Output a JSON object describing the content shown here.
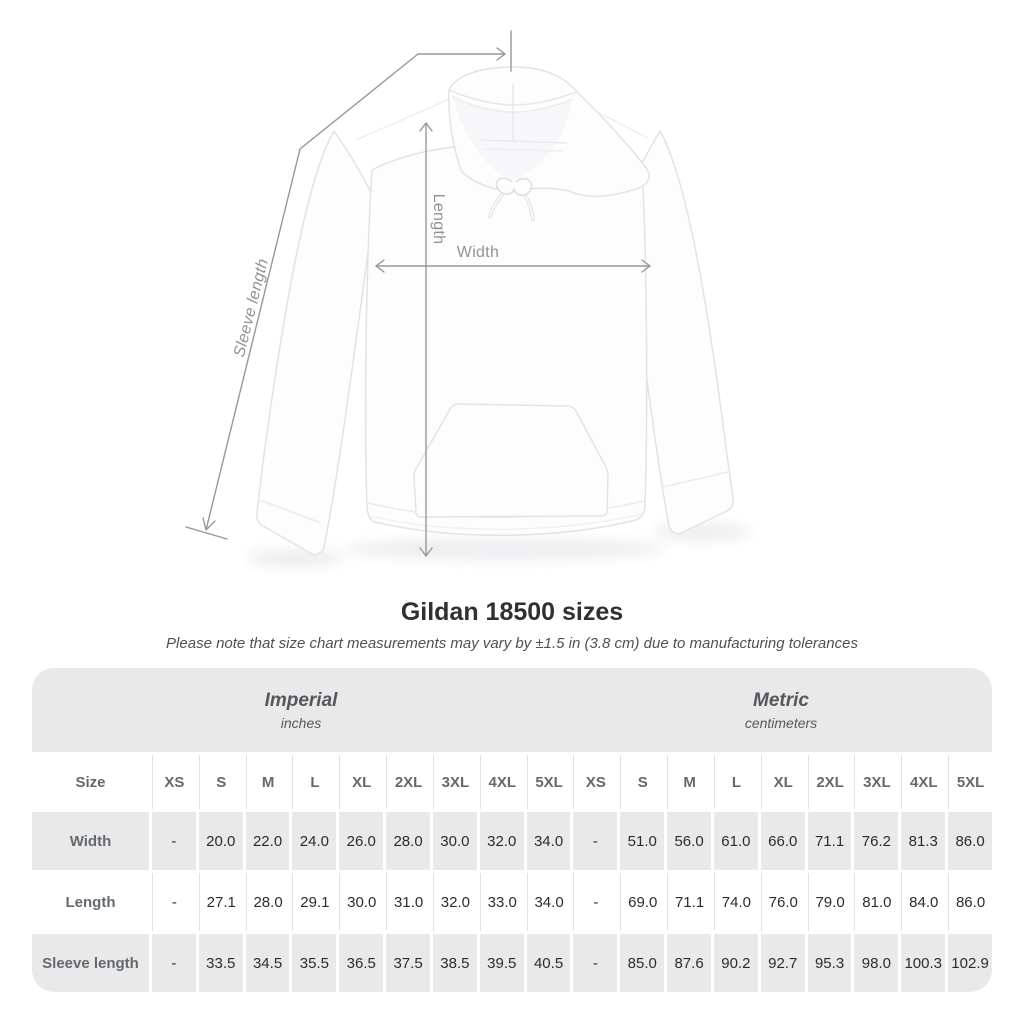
{
  "title": "Gildan 18500 sizes",
  "subtitle": "Please note that size chart measurements may vary by ±1.5 in (3.8 cm) due to manufacturing tolerances",
  "figure": {
    "length_label": "Length",
    "width_label": "Width",
    "sleeve_label": "Sleeve length"
  },
  "colors": {
    "table_band_gray": "#e9e9e9",
    "arrow_gray": "#97979a",
    "measure_label_gray": "#8f9397",
    "header_text_gray": "#63696f",
    "value_text": "#2a2d30"
  },
  "table": {
    "size_header": "Size",
    "sizes": [
      "XS",
      "S",
      "M",
      "L",
      "XL",
      "2XL",
      "3XL",
      "4XL",
      "5XL"
    ],
    "groups": [
      {
        "label": "Imperial",
        "unit": "inches"
      },
      {
        "label": "Metric",
        "unit": "centimeters"
      }
    ],
    "rows": [
      {
        "label": "Width",
        "imperial": [
          "-",
          "20.0",
          "22.0",
          "24.0",
          "26.0",
          "28.0",
          "30.0",
          "32.0",
          "34.0"
        ],
        "metric": [
          "-",
          "51.0",
          "56.0",
          "61.0",
          "66.0",
          "71.1",
          "76.2",
          "81.3",
          "86.0"
        ]
      },
      {
        "label": "Length",
        "imperial": [
          "-",
          "27.1",
          "28.0",
          "29.1",
          "30.0",
          "31.0",
          "32.0",
          "33.0",
          "34.0"
        ],
        "metric": [
          "-",
          "69.0",
          "71.1",
          "74.0",
          "76.0",
          "79.0",
          "81.0",
          "84.0",
          "86.0"
        ]
      },
      {
        "label": "Sleeve length",
        "imperial": [
          "-",
          "33.5",
          "34.5",
          "35.5",
          "36.5",
          "37.5",
          "38.5",
          "39.5",
          "40.5"
        ],
        "metric": [
          "-",
          "85.0",
          "87.6",
          "90.2",
          "92.7",
          "95.3",
          "98.0",
          "100.3",
          "102.9"
        ]
      }
    ]
  },
  "chart_data": {
    "type": "table",
    "title": "Gildan 18500 sizes",
    "note": "Please note that size chart measurements may vary by ±1.5 in (3.8 cm) due to manufacturing tolerances",
    "columns": [
      "Size",
      "XS",
      "S",
      "M",
      "L",
      "XL",
      "2XL",
      "3XL",
      "4XL",
      "5XL"
    ],
    "unit_groups": {
      "Imperial": "inches",
      "Metric": "centimeters"
    },
    "rows_imperial": [
      [
        "Width",
        null,
        20.0,
        22.0,
        24.0,
        26.0,
        28.0,
        30.0,
        32.0,
        34.0
      ],
      [
        "Length",
        null,
        27.1,
        28.0,
        29.1,
        30.0,
        31.0,
        32.0,
        33.0,
        34.0
      ],
      [
        "Sleeve length",
        null,
        33.5,
        34.5,
        35.5,
        36.5,
        37.5,
        38.5,
        39.5,
        40.5
      ]
    ],
    "rows_metric": [
      [
        "Width",
        null,
        51.0,
        56.0,
        61.0,
        66.0,
        71.1,
        76.2,
        81.3,
        86.0
      ],
      [
        "Length",
        null,
        69.0,
        71.1,
        74.0,
        76.0,
        79.0,
        81.0,
        84.0,
        86.0
      ],
      [
        "Sleeve length",
        null,
        85.0,
        87.6,
        90.2,
        92.7,
        95.3,
        98.0,
        100.3,
        102.9
      ]
    ],
    "measurement_annotations": [
      "Length",
      "Width",
      "Sleeve length"
    ]
  }
}
